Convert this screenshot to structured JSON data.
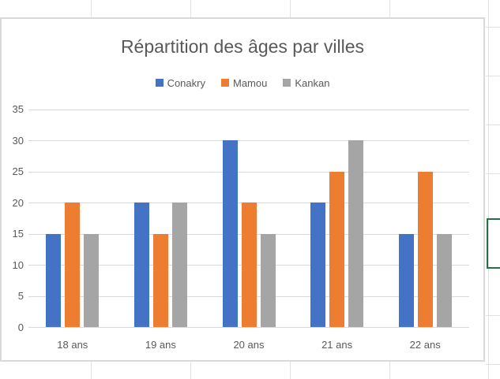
{
  "chart_data": {
    "type": "bar",
    "title": "Répartition des âges par villes",
    "categories": [
      "18 ans",
      "19 ans",
      "20 ans",
      "21 ans",
      "22 ans"
    ],
    "series": [
      {
        "name": "Conakry",
        "color": "#4472C4",
        "values": [
          15,
          20,
          30,
          20,
          15
        ]
      },
      {
        "name": "Mamou",
        "color": "#ED7D31",
        "values": [
          20,
          15,
          20,
          25,
          25
        ]
      },
      {
        "name": "Kankan",
        "color": "#A5A5A5",
        "values": [
          15,
          20,
          15,
          30,
          15
        ]
      }
    ],
    "xlabel": "",
    "ylabel": "",
    "ylim": [
      0,
      35
    ],
    "ytick_step": 5,
    "yticks": [
      0,
      5,
      10,
      15,
      20,
      25,
      30,
      35
    ],
    "grid": true,
    "legend_position": "top",
    "text_color": "#595959",
    "gridline_color": "#D9D9D9"
  },
  "spreadsheet": {
    "selection_color": "#217346",
    "gridline_color": "#E2E2E2"
  }
}
